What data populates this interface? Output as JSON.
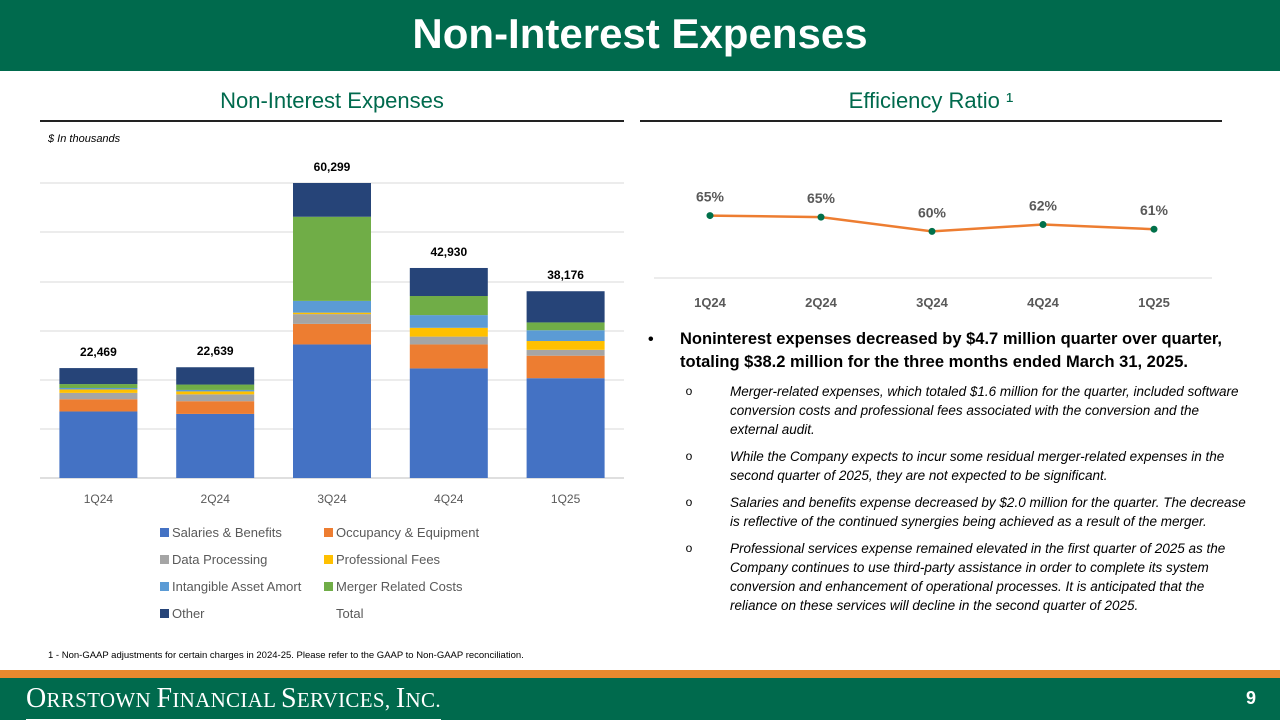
{
  "header": {
    "title": "Non-Interest Expenses"
  },
  "left_section": {
    "title": "Non-Interest Expenses",
    "units_note": "$ In thousands"
  },
  "right_section": {
    "title": "Efficiency Ratio ¹"
  },
  "chart_data": [
    {
      "type": "bar",
      "stacked": true,
      "title": "Non-Interest Expenses",
      "units": "$ In thousands",
      "categories": [
        "1Q24",
        "2Q24",
        "3Q24",
        "4Q24",
        "1Q25"
      ],
      "ylim": [
        0,
        60299
      ],
      "series": [
        {
          "name": "Salaries & Benefits",
          "color": "#4472c4",
          "values": [
            13600,
            13100,
            27300,
            22400,
            20400
          ]
        },
        {
          "name": "Occupancy & Equipment",
          "color": "#ed7d31",
          "values": [
            2500,
            2600,
            4200,
            4900,
            4600
          ]
        },
        {
          "name": "Data Processing",
          "color": "#a5a5a5",
          "values": [
            1300,
            1400,
            2000,
            1600,
            1200
          ]
        },
        {
          "name": "Professional Fees",
          "color": "#ffc000",
          "values": [
            700,
            600,
            300,
            1800,
            1800
          ]
        },
        {
          "name": "Intangible Asset Amort",
          "color": "#5b9bd5",
          "values": [
            300,
            300,
            2400,
            2600,
            2200
          ]
        },
        {
          "name": "Merger Related Costs",
          "color": "#70ad47",
          "values": [
            800,
            1100,
            17200,
            3900,
            1600
          ]
        },
        {
          "name": "Other",
          "color": "#264478",
          "values": [
            3269,
            3539,
            6899,
            5730,
            6376
          ]
        }
      ],
      "totals": {
        "name": "Total",
        "values": [
          22469,
          22639,
          60299,
          42930,
          38176
        ],
        "labels": [
          "22,469",
          "22,639",
          "60,299",
          "42,930",
          "38,176"
        ]
      }
    },
    {
      "type": "line",
      "title": "Efficiency Ratio ¹",
      "categories": [
        "1Q24",
        "2Q24",
        "3Q24",
        "4Q24",
        "1Q25"
      ],
      "series": [
        {
          "name": "Efficiency Ratio",
          "color": "#ed7d31",
          "marker_color": "#00704a",
          "values": [
            65.3,
            64.8,
            60.2,
            62.4,
            60.9
          ],
          "labels": [
            "65%",
            "65%",
            "60%",
            "62%",
            "61%"
          ]
        }
      ],
      "ylim": [
        40,
        80
      ]
    }
  ],
  "bullets": {
    "main_symbol": "•",
    "main": "Noninterest expenses decreased by $4.7 million quarter over quarter, totaling $38.2 million for the three months ended March 31, 2025.",
    "sub_symbol": "o",
    "subs": [
      "Merger-related expenses, which totaled $1.6 million for the quarter, included software conversion costs and professional fees associated with the conversion and the external audit.",
      "While the Company expects to incur some residual merger-related expenses in the second quarter of 2025, they are not expected to be significant.",
      "Salaries and benefits expense decreased by $2.0 million for the quarter.  The decrease is reflective of the continued synergies being achieved as a result of the merger.",
      "Professional services expense remained elevated in the first quarter of 2025 as the Company continues to use third-party assistance in order to complete its system conversion and enhancement of operational processes. It is anticipated that the reliance on these services will decline in the second quarter of 2025."
    ]
  },
  "footnote": "1 - Non-GAAP adjustments for certain charges in 2024-25. Please refer to the GAAP to Non-GAAP reconciliation.",
  "footer": {
    "company_parts": [
      {
        "text": "O",
        "small": false
      },
      {
        "text": "RRSTOWN ",
        "small": true
      },
      {
        "text": "F",
        "small": false
      },
      {
        "text": "INANCIAL ",
        "small": true
      },
      {
        "text": "S",
        "small": false
      },
      {
        "text": "ERVICES, ",
        "small": true
      },
      {
        "text": "I",
        "small": false
      },
      {
        "text": "NC.",
        "small": true
      }
    ],
    "page_number": "9"
  },
  "colors": {
    "brand_green": "#006a4d",
    "accent_orange": "#e8892e"
  }
}
